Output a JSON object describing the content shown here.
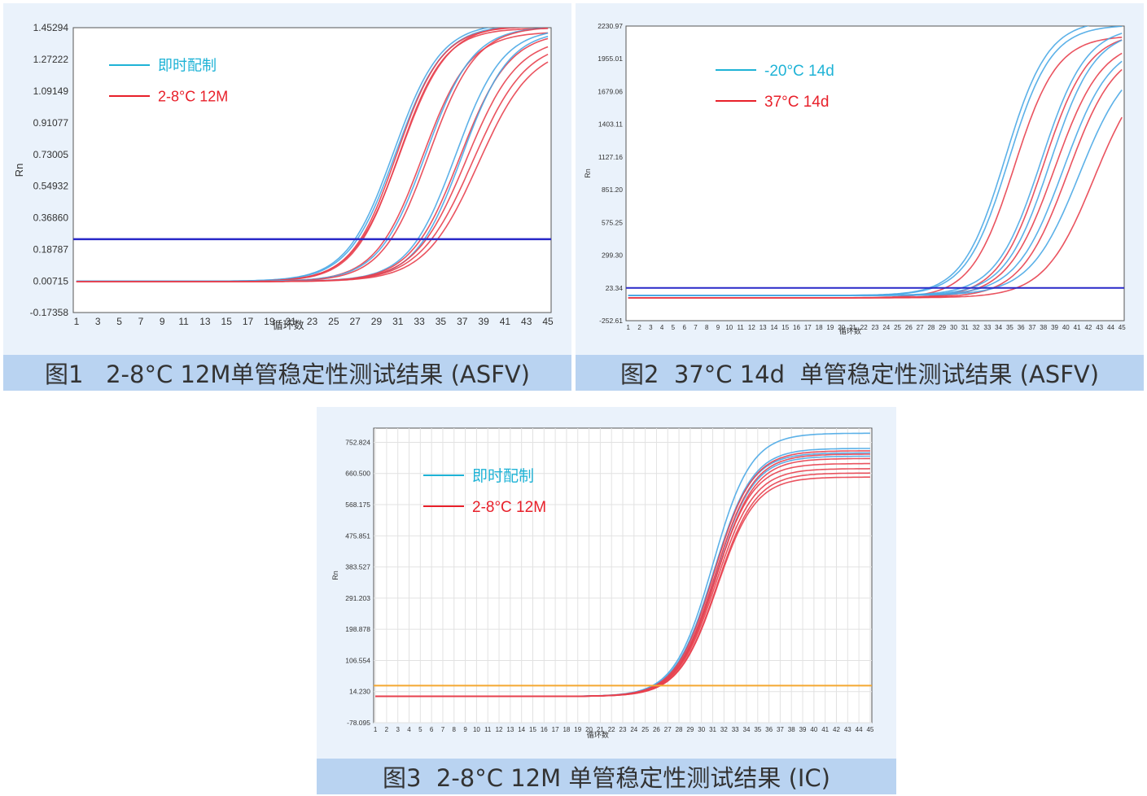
{
  "colors": {
    "blue_series": "#4aa8e6",
    "red_series": "#e8404e",
    "legend_blue_text": "#1fb3d6",
    "legend_red_text": "#e8202a",
    "threshold_blue": "#2828c8",
    "threshold_orange": "#f4a832",
    "caption_bg": "#b9d3f1",
    "panel_bg": "#eaf2fb"
  },
  "chart_data": [
    {
      "type": "line",
      "title": "",
      "xlabel": "循环数",
      "ylabel": "Rn",
      "x_ticks": [
        1,
        3,
        5,
        7,
        9,
        11,
        13,
        15,
        17,
        19,
        21,
        23,
        25,
        27,
        29,
        31,
        33,
        35,
        37,
        39,
        41,
        43,
        45
      ],
      "y_ticks": [
        "1.45294",
        "1.27222",
        "1.09149",
        "0.91077",
        "0.73005",
        "0.54932",
        "0.36860",
        "0.18787",
        "0.00715",
        "-0.17358"
      ],
      "ylim": [
        -0.17358,
        1.45294
      ],
      "xlim": [
        1,
        45
      ],
      "grid": false,
      "legend": [
        {
          "label": "即时配制",
          "color": "blue"
        },
        {
          "label": "2-8°C 12M",
          "color": "red"
        }
      ],
      "threshold": 0.245,
      "series": [
        {
          "color": "blue",
          "ct": 30.6,
          "max": 1.48,
          "k": 2.2
        },
        {
          "color": "blue",
          "ct": 30.8,
          "max": 1.47,
          "k": 2.2
        },
        {
          "color": "red",
          "ct": 30.9,
          "max": 1.46,
          "k": 2.1
        },
        {
          "color": "red",
          "ct": 31.1,
          "max": 1.45,
          "k": 2.1
        },
        {
          "color": "red",
          "ct": 31.2,
          "max": 1.47,
          "k": 2.2
        },
        {
          "color": "red",
          "ct": 33.3,
          "max": 1.43,
          "k": 2.2
        },
        {
          "color": "blue",
          "ct": 33.6,
          "max": 1.46,
          "k": 2.2
        },
        {
          "color": "red",
          "ct": 33.9,
          "max": 1.46,
          "k": 2.2
        },
        {
          "color": "blue",
          "ct": 36.4,
          "max": 1.45,
          "k": 2.2
        },
        {
          "color": "red",
          "ct": 36.8,
          "max": 1.43,
          "k": 2.3
        },
        {
          "color": "blue",
          "ct": 37.0,
          "max": 1.44,
          "k": 2.2
        },
        {
          "color": "red",
          "ct": 37.4,
          "max": 1.4,
          "k": 2.4
        },
        {
          "color": "red",
          "ct": 38.0,
          "max": 1.38,
          "k": 2.5
        },
        {
          "color": "red",
          "ct": 38.5,
          "max": 1.35,
          "k": 2.5
        }
      ]
    },
    {
      "type": "line",
      "title": "",
      "xlabel": "循环数",
      "ylabel": "Rn",
      "x_ticks": [
        1,
        2,
        3,
        4,
        5,
        6,
        7,
        8,
        9,
        10,
        11,
        12,
        13,
        14,
        15,
        16,
        17,
        18,
        19,
        20,
        21,
        22,
        23,
        24,
        25,
        26,
        27,
        28,
        29,
        30,
        31,
        32,
        33,
        34,
        35,
        36,
        37,
        38,
        39,
        40,
        41,
        42,
        43,
        44,
        45
      ],
      "y_ticks": [
        "2230.97",
        "1955.01",
        "1679.06",
        "1403.11",
        "1127.16",
        "851.20",
        "575.25",
        "299.30",
        "23.34",
        "-252.61"
      ],
      "ylim": [
        -252.61,
        2230.97
      ],
      "xlim": [
        1,
        45
      ],
      "grid": false,
      "legend": [
        {
          "label": "-20°C 14d",
          "color": "blue"
        },
        {
          "label": "37°C 14d",
          "color": "red"
        }
      ],
      "threshold": 23.34,
      "series": [
        {
          "color": "blue",
          "ct": 34.6,
          "max": 2280,
          "k": 1.9
        },
        {
          "color": "blue",
          "ct": 34.9,
          "max": 2240,
          "k": 1.9
        },
        {
          "color": "red",
          "ct": 35.4,
          "max": 2150,
          "k": 1.9
        },
        {
          "color": "blue",
          "ct": 37.8,
          "max": 2230,
          "k": 2.0
        },
        {
          "color": "red",
          "ct": 38.0,
          "max": 2180,
          "k": 2.0
        },
        {
          "color": "blue",
          "ct": 38.6,
          "max": 2200,
          "k": 2.0
        },
        {
          "color": "red",
          "ct": 39.0,
          "max": 2120,
          "k": 2.1
        },
        {
          "color": "blue",
          "ct": 39.8,
          "max": 2100,
          "k": 2.1
        },
        {
          "color": "red",
          "ct": 40.2,
          "max": 2060,
          "k": 2.1
        },
        {
          "color": "blue",
          "ct": 41.2,
          "max": 2000,
          "k": 2.2
        },
        {
          "color": "red",
          "ct": 42.5,
          "max": 1950,
          "k": 2.2
        }
      ]
    },
    {
      "type": "line",
      "title": "",
      "xlabel": "循环数",
      "ylabel": "Rn",
      "x_ticks": [
        1,
        2,
        3,
        4,
        5,
        6,
        7,
        8,
        9,
        10,
        11,
        12,
        13,
        14,
        15,
        16,
        17,
        18,
        19,
        20,
        21,
        22,
        23,
        24,
        25,
        26,
        27,
        28,
        29,
        30,
        31,
        32,
        33,
        34,
        35,
        36,
        37,
        38,
        39,
        40,
        41,
        42,
        43,
        44,
        45
      ],
      "y_ticks": [
        "752.824",
        "660.500",
        "568.175",
        "475.851",
        "383.527",
        "291.203",
        "198.878",
        "106.554",
        "14.230",
        "-78.095"
      ],
      "ylim": [
        -78.095,
        795
      ],
      "xlim": [
        1,
        45
      ],
      "grid": true,
      "legend": [
        {
          "label": "即时配制",
          "color": "blue"
        },
        {
          "label": "2-8°C 12M",
          "color": "red"
        }
      ],
      "threshold": 32,
      "series": [
        {
          "color": "blue",
          "ct": 31.0,
          "max": 780,
          "k": 1.7
        },
        {
          "color": "blue",
          "ct": 31.1,
          "max": 735,
          "k": 1.7
        },
        {
          "color": "blue",
          "ct": 31.0,
          "max": 722,
          "k": 1.7
        },
        {
          "color": "blue",
          "ct": 31.2,
          "max": 712,
          "k": 1.7
        },
        {
          "color": "red",
          "ct": 31.1,
          "max": 728,
          "k": 1.7
        },
        {
          "color": "red",
          "ct": 31.2,
          "max": 718,
          "k": 1.7
        },
        {
          "color": "red",
          "ct": 31.3,
          "max": 705,
          "k": 1.7
        },
        {
          "color": "red",
          "ct": 31.2,
          "max": 690,
          "k": 1.7
        },
        {
          "color": "red",
          "ct": 31.3,
          "max": 675,
          "k": 1.7
        },
        {
          "color": "red",
          "ct": 31.4,
          "max": 662,
          "k": 1.7
        },
        {
          "color": "red",
          "ct": 31.4,
          "max": 650,
          "k": 1.7
        }
      ]
    }
  ],
  "captions": [
    "图1   2-8°C 12M单管稳定性测试结果 (ASFV)",
    "图2  37°C 14d  单管稳定性测试结果 (ASFV)",
    "图3  2-8°C 12M 单管稳定性测试结果 (IC)"
  ]
}
